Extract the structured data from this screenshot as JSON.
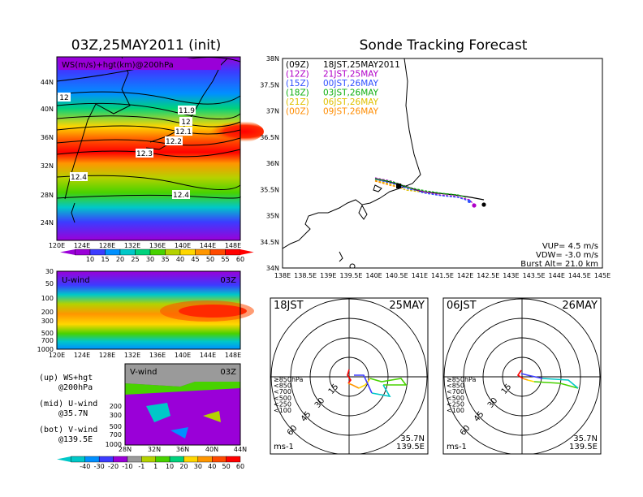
{
  "left_title": "03Z,25MAY2011 (init)",
  "right_title": "Sonde Tracking Forecast",
  "colors": {
    "ws_scale": [
      "#9a00d8",
      "#3c3cff",
      "#0090ff",
      "#00c8c8",
      "#00d27d",
      "#48d200",
      "#b4d200",
      "#ffd700",
      "#ff9600",
      "#ff4a00",
      "#ff0000"
    ],
    "wind_scale": [
      "#00c8c8",
      "#0090ff",
      "#3c3cff",
      "#9a00d8",
      "#9a9a9a",
      "#b4d200",
      "#48d200",
      "#00d27d",
      "#ffd700",
      "#ff9600",
      "#ff4a00",
      "#ff0000"
    ]
  },
  "top_map": {
    "label": "WS(m/s)+hgt(km)@200hPa",
    "lat_ticks": [
      "44N",
      "40N",
      "36N",
      "32N",
      "28N",
      "24N"
    ],
    "lon_ticks": [
      "120E",
      "124E",
      "128E",
      "132E",
      "136E",
      "140E",
      "144E",
      "148E"
    ],
    "contour_labels": [
      "12",
      "11.9",
      "12",
      "12.1",
      "12.2",
      "12.3",
      "12.4",
      "12.4"
    ],
    "colorbar_ticks": [
      "10",
      "15",
      "20",
      "25",
      "30",
      "35",
      "40",
      "45",
      "50",
      "55",
      "60"
    ]
  },
  "mid_panel": {
    "label": "U-wind",
    "time": "03Z",
    "p_ticks": [
      "30",
      "50",
      "100",
      "200",
      "300",
      "500",
      "700",
      "1000"
    ],
    "lon_ticks": [
      "120E",
      "124E",
      "128E",
      "132E",
      "136E",
      "140E",
      "144E",
      "148E"
    ]
  },
  "bot_panel": {
    "label": "V-wind",
    "time": "03Z",
    "p_ticks": [
      "200",
      "300",
      "500",
      "700",
      "1000"
    ],
    "lat_ticks": [
      "28N",
      "32N",
      "36N",
      "40N",
      "44N"
    ],
    "colorbar_ticks": [
      "-40",
      "-30",
      "-20",
      "-10",
      "-1",
      "1",
      "10",
      "20",
      "30",
      "40",
      "50",
      "60"
    ]
  },
  "notes": [
    {
      "line1": "(up) WS+hgt",
      "line2": "@200hPa"
    },
    {
      "line1": "(mid) U-wind",
      "line2": "@35.7N"
    },
    {
      "line1": "(bot) V-wind",
      "line2": "@139.5E"
    }
  ],
  "track_map": {
    "lat_ticks": [
      "38N",
      "37.5N",
      "37N",
      "36.5N",
      "36N",
      "35.5N",
      "35N",
      "34.5N",
      "34N"
    ],
    "lon_ticks": [
      "138E",
      "138.5E",
      "139E",
      "139.5E",
      "140E",
      "140.5E",
      "141E",
      "141.5E",
      "142E",
      "142.5E",
      "143E",
      "143.5E",
      "144E",
      "144.5E",
      "145E"
    ],
    "legend": [
      {
        "z": "(09Z)",
        "t": "18JST,25MAY2011",
        "color": "#000000"
      },
      {
        "z": "(12Z)",
        "t": "21JST,25MAY",
        "color": "#b000c8"
      },
      {
        "z": "(15Z)",
        "t": "00JST,26MAY",
        "color": "#3050ff"
      },
      {
        "z": "(18Z)",
        "t": "03JST,26MAY",
        "color": "#10b010"
      },
      {
        "z": "(21Z)",
        "t": "06JST,26MAY",
        "color": "#e0c000"
      },
      {
        "z": "(00Z)",
        "t": "09JST,26MAY",
        "color": "#ff8c00"
      }
    ],
    "vup": "VUP= 4.5 m/s",
    "vdw": "VDW= -3.0 m/s",
    "burst": "Burst Alt= 21.0 km"
  },
  "hodographs": [
    {
      "time": "18JST",
      "date": "25MAY",
      "lat": "35.7N",
      "lon": "139.5E",
      "unit": "ms-1",
      "ring_labels": [
        "15",
        "30",
        "45",
        "60"
      ],
      "levels": [
        {
          "label": "≥850hPa",
          "color": "#ff0000"
        },
        {
          "label": "<850",
          "color": "#ff9600"
        },
        {
          "label": "<700",
          "color": "#ffd700"
        },
        {
          "label": "<500",
          "color": "#48d200"
        },
        {
          "label": "<250",
          "color": "#00c8c8"
        },
        {
          "label": "<100",
          "color": "#3c3cff"
        }
      ]
    },
    {
      "time": "06JST",
      "date": "26MAY",
      "lat": "35.7N",
      "lon": "139.5E",
      "unit": "ms-1",
      "ring_labels": [
        "15",
        "30",
        "45",
        "60"
      ],
      "levels": [
        {
          "label": "≥850hPa",
          "color": "#ff0000"
        },
        {
          "label": "<850",
          "color": "#ff9600"
        },
        {
          "label": "<700",
          "color": "#ffd700"
        },
        {
          "label": "<500",
          "color": "#48d200"
        },
        {
          "label": "<250",
          "color": "#00c8c8"
        },
        {
          "label": "<100",
          "color": "#3c3cff"
        }
      ]
    }
  ]
}
